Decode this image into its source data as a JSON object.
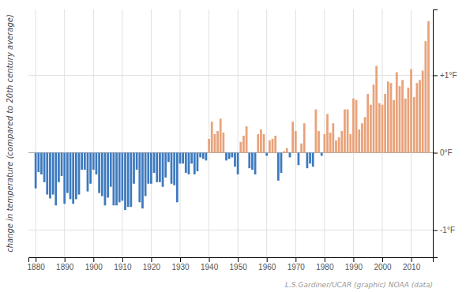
{
  "chart_data": {
    "type": "bar",
    "ylabel": "change in temperature (compared to 20th century average)",
    "annotations": [
      "L.S.Gardiner/UCAR (graphic) NOAA (data)"
    ],
    "x": [
      1880,
      1881,
      1882,
      1883,
      1884,
      1885,
      1886,
      1887,
      1888,
      1889,
      1890,
      1891,
      1892,
      1893,
      1894,
      1895,
      1896,
      1897,
      1898,
      1899,
      1900,
      1901,
      1902,
      1903,
      1904,
      1905,
      1906,
      1907,
      1908,
      1909,
      1910,
      1911,
      1912,
      1913,
      1914,
      1915,
      1916,
      1917,
      1918,
      1919,
      1920,
      1921,
      1922,
      1923,
      1924,
      1925,
      1926,
      1927,
      1928,
      1929,
      1930,
      1931,
      1932,
      1933,
      1934,
      1935,
      1936,
      1937,
      1938,
      1939,
      1940,
      1941,
      1942,
      1943,
      1944,
      1945,
      1946,
      1947,
      1948,
      1949,
      1950,
      1951,
      1952,
      1953,
      1954,
      1955,
      1956,
      1957,
      1958,
      1959,
      1960,
      1961,
      1962,
      1963,
      1964,
      1965,
      1966,
      1967,
      1968,
      1969,
      1970,
      1971,
      1972,
      1973,
      1974,
      1975,
      1976,
      1977,
      1978,
      1979,
      1980,
      1981,
      1982,
      1983,
      1984,
      1985,
      1986,
      1987,
      1988,
      1989,
      1990,
      1991,
      1992,
      1993,
      1994,
      1995,
      1996,
      1997,
      1998,
      1999,
      2000,
      2001,
      2002,
      2003,
      2004,
      2005,
      2006,
      2007,
      2008,
      2009,
      2010,
      2011,
      2012,
      2013,
      2014,
      2015,
      2016
    ],
    "values": [
      -0.46,
      -0.25,
      -0.28,
      -0.38,
      -0.54,
      -0.59,
      -0.54,
      -0.68,
      -0.38,
      -0.3,
      -0.66,
      -0.52,
      -0.6,
      -0.66,
      -0.6,
      -0.54,
      -0.22,
      -0.22,
      -0.5,
      -0.4,
      -0.22,
      -0.28,
      -0.52,
      -0.56,
      -0.68,
      -0.58,
      -0.44,
      -0.68,
      -0.68,
      -0.64,
      -0.62,
      -0.74,
      -0.7,
      -0.7,
      -0.4,
      -0.22,
      -0.64,
      -0.72,
      -0.56,
      -0.4,
      -0.4,
      -0.26,
      -0.38,
      -0.38,
      -0.44,
      -0.32,
      -0.12,
      -0.4,
      -0.42,
      -0.64,
      -0.14,
      -0.14,
      -0.26,
      -0.28,
      -0.14,
      -0.28,
      -0.24,
      -0.06,
      -0.08,
      -0.1,
      0.18,
      0.4,
      0.24,
      0.28,
      0.44,
      0.26,
      -0.1,
      -0.08,
      -0.06,
      -0.18,
      -0.28,
      0.14,
      0.22,
      0.34,
      -0.2,
      -0.22,
      -0.28,
      0.24,
      0.3,
      0.24,
      -0.04,
      0.16,
      0.18,
      0.22,
      -0.36,
      -0.26,
      0.02,
      0.06,
      -0.06,
      0.4,
      0.28,
      -0.16,
      0.12,
      0.38,
      -0.2,
      -0.14,
      -0.18,
      0.56,
      0.28,
      -0.04,
      0.24,
      0.5,
      0.26,
      0.38,
      0.16,
      0.2,
      0.28,
      0.56,
      0.56,
      0.24,
      0.7,
      0.68,
      0.3,
      0.38,
      0.46,
      0.76,
      0.62,
      0.88,
      1.12,
      0.64,
      0.62,
      0.76,
      0.92,
      0.9,
      0.68,
      1.04,
      0.86,
      0.94,
      0.7,
      0.84,
      1.08,
      0.72,
      0.9,
      0.94,
      1.06,
      1.44,
      1.7
    ],
    "colors": [
      "#3d7abf",
      "#3d7abf",
      "#3d7abf",
      "#3d7abf",
      "#3d7abf",
      "#3d7abf",
      "#3d7abf",
      "#3d7abf",
      "#3d7abf",
      "#3d7abf",
      "#3d7abf",
      "#3d7abf",
      "#3d7abf",
      "#3d7abf",
      "#3d7abf",
      "#3d7abf",
      "#3d7abf",
      "#3d7abf",
      "#3d7abf",
      "#3d7abf",
      "#3d7abf",
      "#3d7abf",
      "#3d7abf",
      "#3d7abf",
      "#3d7abf",
      "#3d7abf",
      "#3d7abf",
      "#3d7abf",
      "#3d7abf",
      "#3d7abf",
      "#3d7abf",
      "#3d7abf",
      "#3d7abf",
      "#3d7abf",
      "#3d7abf",
      "#3d7abf",
      "#3d7abf",
      "#3d7abf",
      "#3d7abf",
      "#3d7abf",
      "#3d7abf",
      "#3d7abf",
      "#3d7abf",
      "#3d7abf",
      "#3d7abf",
      "#3d7abf",
      "#3d7abf",
      "#3d7abf",
      "#3d7abf",
      "#3d7abf",
      "#3d7abf",
      "#3d7abf",
      "#3d7abf",
      "#3d7abf",
      "#3d7abf",
      "#3d7abf",
      "#3d7abf",
      "#3d7abf",
      "#3d7abf",
      "#3d7abf",
      "#e8a27a",
      "#e8a27a",
      "#e8a27a",
      "#e8a27a",
      "#e8a27a",
      "#e8a27a",
      "#3d7abf",
      "#3d7abf",
      "#3d7abf",
      "#3d7abf",
      "#3d7abf",
      "#e8a27a",
      "#e8a27a",
      "#e8a27a",
      "#3d7abf",
      "#3d7abf",
      "#3d7abf",
      "#e8a27a",
      "#e8a27a",
      "#e8a27a",
      "#3d7abf",
      "#e8a27a",
      "#e8a27a",
      "#e8a27a",
      "#3d7abf",
      "#3d7abf",
      "#e8a27a",
      "#e8a27a",
      "#3d7abf",
      "#e8a27a",
      "#e8a27a",
      "#3d7abf",
      "#e8a27a",
      "#e8a27a",
      "#3d7abf",
      "#3d7abf",
      "#3d7abf",
      "#e8a27a",
      "#e8a27a",
      "#3d7abf",
      "#e8a27a",
      "#e8a27a",
      "#e8a27a",
      "#e8a27a",
      "#e8a27a",
      "#e8a27a",
      "#e8a27a",
      "#e8a27a",
      "#e8a27a",
      "#e8a27a",
      "#e8a27a",
      "#e8a27a",
      "#e8a27a",
      "#e8a27a",
      "#e8a27a",
      "#e8a27a",
      "#e8a27a",
      "#e8a27a",
      "#e8a27a",
      "#e8a27a",
      "#e8a27a",
      "#e8a27a",
      "#e8a27a",
      "#e8a27a",
      "#e8a27a",
      "#e8a27a",
      "#e8a27a",
      "#e8a27a",
      "#e8a27a",
      "#e8a27a",
      "#e8a27a",
      "#e8a27a",
      "#e8a27a",
      "#e8a27a",
      "#e8a27a",
      "#e8a27a",
      "#e8a27a"
    ],
    "xlim": [
      1877.5,
      2017.5
    ],
    "xticks": [
      1880,
      1890,
      1900,
      1910,
      1920,
      1930,
      1940,
      1950,
      1960,
      1970,
      1980,
      1990,
      2000,
      2010
    ],
    "ylim": [
      -1.35,
      1.85
    ],
    "yticks": [
      {
        "value": 1.0,
        "label": "+1°F"
      },
      {
        "value": 0.0,
        "label": "0°F"
      },
      {
        "value": -1.0,
        "label": "-1°F"
      }
    ],
    "grid": true
  }
}
